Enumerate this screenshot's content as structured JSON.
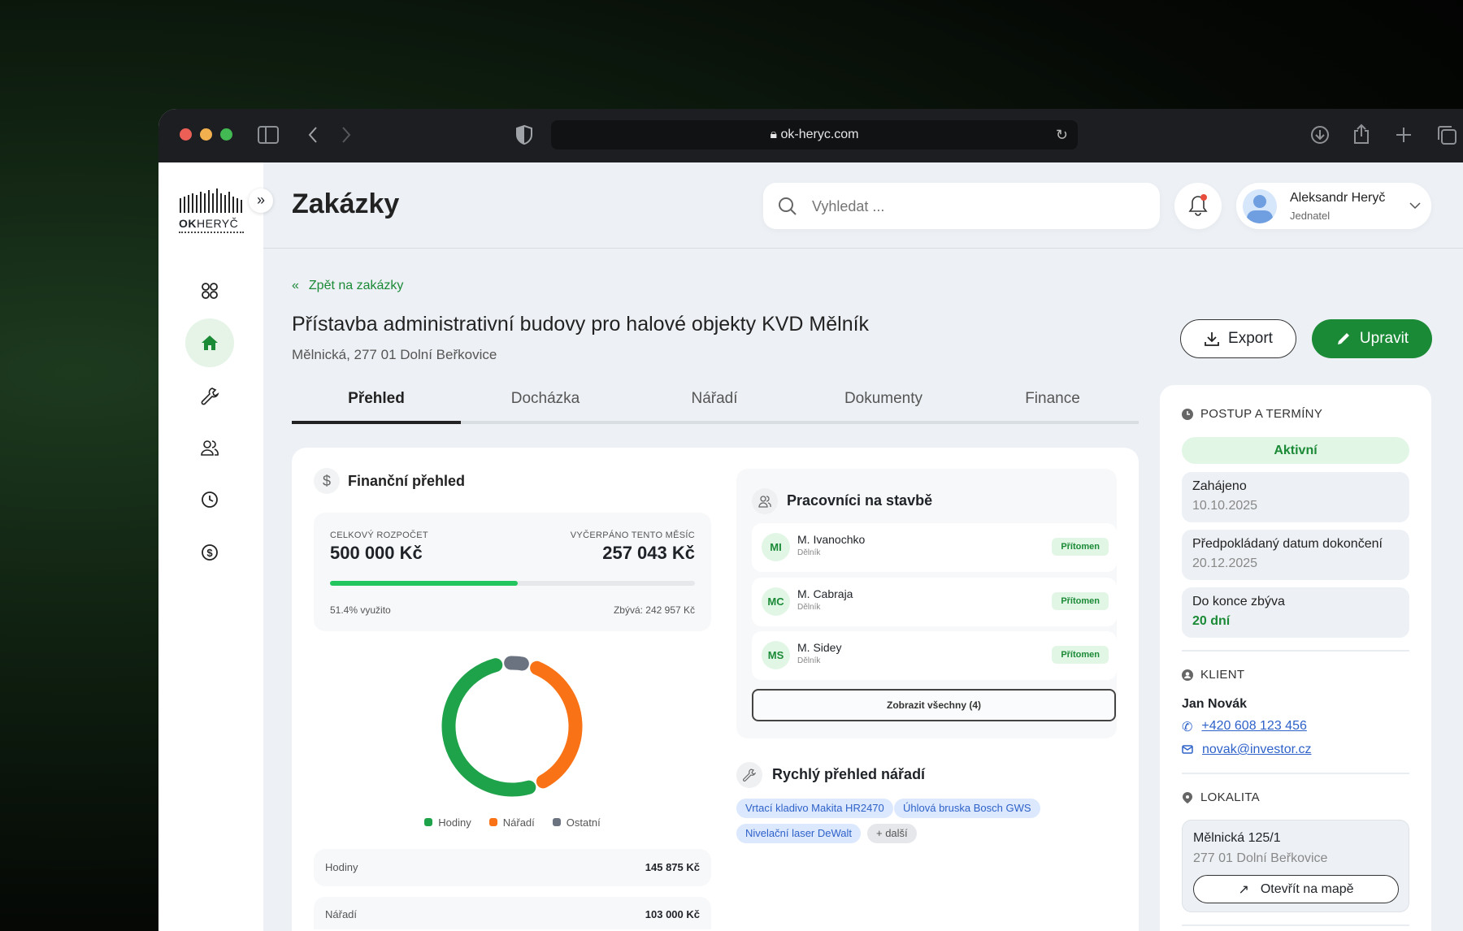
{
  "browser": {
    "url": "ok-heryc.com"
  },
  "brand": {
    "logo_text": "OKHERYČ"
  },
  "header": {
    "title": "Zakázky",
    "search_placeholder": "Vyhledat ...",
    "user_name": "Aleksandr Heryč",
    "user_role": "Jednatel"
  },
  "sidebar": {
    "items": [
      {
        "icon": "grid-icon"
      },
      {
        "icon": "home-icon",
        "active": true
      },
      {
        "icon": "wrench-icon"
      },
      {
        "icon": "users-icon"
      },
      {
        "icon": "clock-icon"
      },
      {
        "icon": "dollar-icon"
      }
    ]
  },
  "project": {
    "back_label": "Zpět na zakázky",
    "title": "Přístavba administrativní budovy pro halové objekty KVD Mělník",
    "address": "Mělnická, 277 01 Dolní Beřkovice",
    "export_label": "Export",
    "edit_label": "Upravit"
  },
  "tabs": [
    {
      "label": "Přehled",
      "active": true
    },
    {
      "label": "Docházka"
    },
    {
      "label": "Nářadí"
    },
    {
      "label": "Dokumenty"
    },
    {
      "label": "Finance"
    }
  ],
  "finance": {
    "title": "Finanční přehled",
    "budget_label": "CELKOVÝ ROZPOČET",
    "budget_value": "500 000 Kč",
    "spent_label": "VYČERPÁNO TENTO MĚSÍC",
    "spent_value": "257 043 Kč",
    "progress_percent": 51.4,
    "used_text": "51.4% využito",
    "remaining_text": "Zbývá: 242 957 Kč",
    "rows": [
      {
        "label": "Hodiny",
        "value": "145 875 Kč"
      },
      {
        "label": "Nářadí",
        "value": "103 000 Kč"
      }
    ]
  },
  "chart_data": {
    "type": "pie",
    "donut": true,
    "legend_position": "bottom",
    "categories": [
      "Hodiny",
      "Nářadí",
      "Ostatní"
    ],
    "values": [
      145875,
      103000,
      8168
    ],
    "colors": [
      "#1fa34a",
      "#f97316",
      "#6b7280"
    ]
  },
  "workers": {
    "title": "Pracovníci na stavbě",
    "items": [
      {
        "initials": "MI",
        "name": "M. Ivanochko",
        "role": "Dělník",
        "status": "Přítomen"
      },
      {
        "initials": "MC",
        "name": "M. Cabraja",
        "role": "Dělník",
        "status": "Přítomen"
      },
      {
        "initials": "MS",
        "name": "M. Sidey",
        "role": "Dělník",
        "status": "Přítomen"
      }
    ],
    "show_all_label": "Zobrazit všechny (4)"
  },
  "tools": {
    "title": "Rychlý přehled nářadí",
    "chips": [
      "Vrtací kladivo Makita HR2470",
      "Úhlová bruska Bosch GWS",
      "Nivelační laser DeWalt"
    ],
    "more_label": "+ další"
  },
  "progress": {
    "title": "POSTUP A TERMÍNY",
    "status": "Aktivní",
    "started_label": "Zahájeno",
    "started_value": "10.10.2025",
    "due_label": "Předpokládaný datum dokončení",
    "due_value": "20.12.2025",
    "left_label": "Do konce zbýva",
    "left_value": "20 dní"
  },
  "client": {
    "title": "KLIENT",
    "name": "Jan Novák",
    "phone": "+420 608 123 456",
    "email": "novak@investor.cz"
  },
  "location": {
    "title": "LOKALITA",
    "street": "Mělnická 125/1",
    "city": "277 01 Dolní Beřkovice",
    "map_label": "Otevřít na mapě"
  },
  "colors": {
    "accent": "#1b8a36",
    "progress": "#22c55e",
    "link": "#2f62c9"
  }
}
